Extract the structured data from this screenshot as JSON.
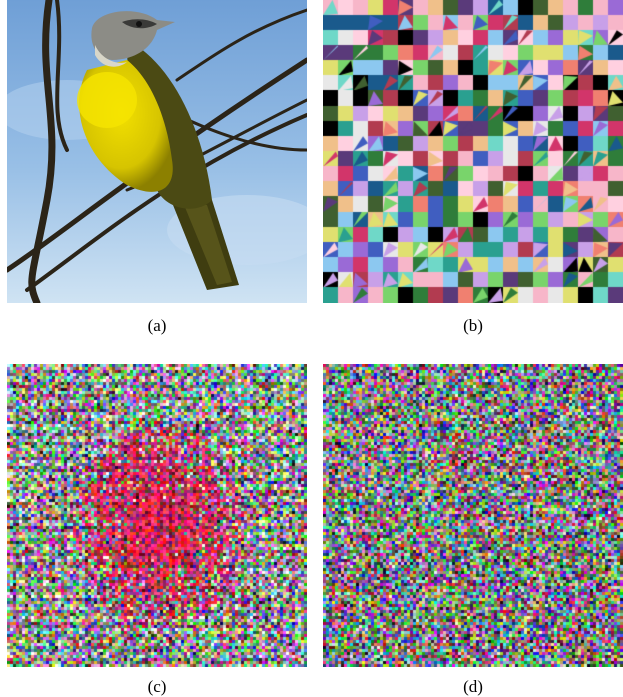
{
  "figure": {
    "panels": [
      {
        "id": "a",
        "caption": "(a)",
        "content": "bird-photo"
      },
      {
        "id": "b",
        "caption": "(b)",
        "content": "block-scrambled"
      },
      {
        "id": "c",
        "caption": "(c)",
        "content": "pixel-scrambled-structured"
      },
      {
        "id": "d",
        "caption": "(d)",
        "content": "pixel-scrambled-noise"
      }
    ]
  },
  "colors": {
    "sky_top": "#6f9fd6",
    "sky_bottom": "#cfe3f3",
    "bird_yellow": "#e5d500",
    "bird_olive": "#4b4a14",
    "bird_gray_head": "#8c8c86",
    "branch": "#2b2418"
  }
}
